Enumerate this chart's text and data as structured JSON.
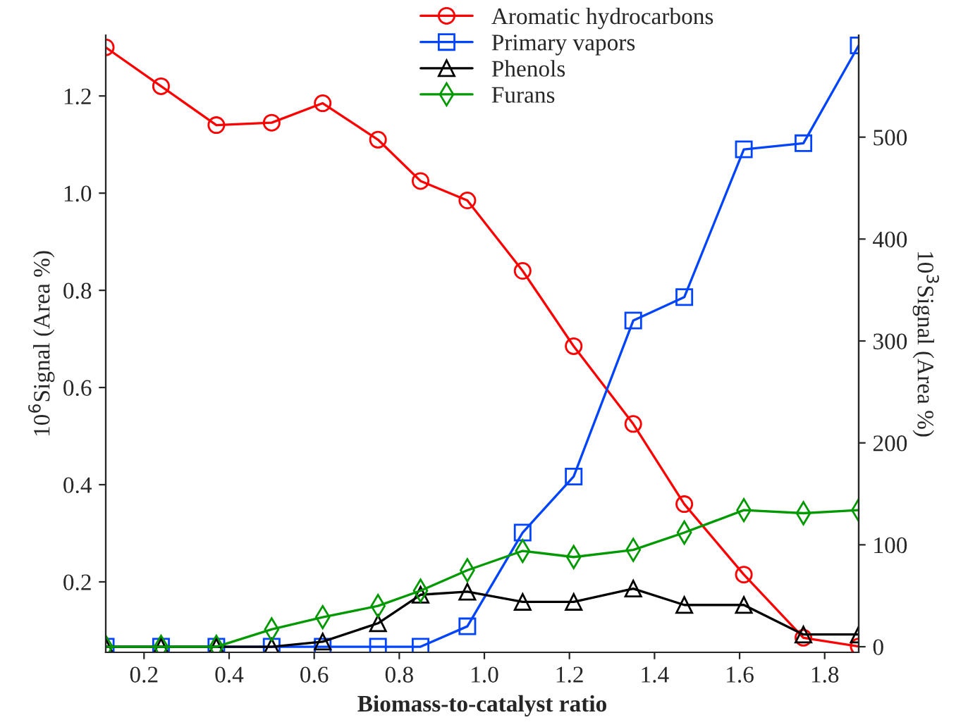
{
  "chart_data": {
    "type": "line",
    "xlabel": "Biomass-to-catalyst ratio",
    "ylabel": "10$^{6}$Signal (Area %)",
    "y2label": "10$^{3}$Signal (Area %)",
    "x": [
      0.11,
      0.24,
      0.37,
      0.5,
      0.62,
      0.75,
      0.85,
      0.96,
      1.09,
      1.21,
      1.35,
      1.47,
      1.61,
      1.75,
      1.88
    ],
    "series": [
      {
        "name": "Aromatic hydrocarbons",
        "color": "#ff0000",
        "marker": "circle",
        "values": [
          1.3,
          1.22,
          1.14,
          1.145,
          1.185,
          1.11,
          1.025,
          0.985,
          0.84,
          0.685,
          0.525,
          0.36,
          0.215,
          0.085,
          0.067
        ]
      },
      {
        "name": "Primary vapors",
        "color": "#0044ff",
        "marker": "square",
        "axis": "y2",
        "values": [
          0,
          0,
          0,
          0,
          0,
          0,
          0,
          20,
          112,
          167,
          320,
          343,
          488,
          494,
          590
        ]
      },
      {
        "name": "Phenols",
        "color": "#000000",
        "marker": "triangle",
        "axis": "y2",
        "values": [
          0,
          0,
          0,
          0,
          5,
          23,
          51,
          54,
          44,
          44,
          57,
          41,
          41,
          12,
          12
        ]
      },
      {
        "name": "Furans",
        "color": "#009900",
        "marker": "diamond",
        "axis": "y2",
        "values": [
          0,
          0,
          0,
          17,
          29,
          40,
          55,
          75,
          94,
          88,
          95,
          112,
          134,
          131,
          134
        ]
      }
    ],
    "xlim": [
      0.11,
      1.88
    ],
    "xticks": [
      0.2,
      0.4,
      0.6,
      0.8,
      {
        "value": 1.0,
        "label": "1.0"
      },
      1.2,
      1.4,
      1.6,
      1.8
    ],
    "ylim": [
      0.055,
      1.325
    ],
    "yticks": [
      0.2,
      0.4,
      0.6,
      0.8,
      {
        "value": 1.0,
        "label": "1.0"
      },
      1.2
    ],
    "y2lim": [
      -5.5,
      600
    ],
    "y2ticks": [
      0,
      100,
      200,
      300,
      400,
      500
    ],
    "grid": false,
    "legend": "top right",
    "line_style": "solid"
  }
}
